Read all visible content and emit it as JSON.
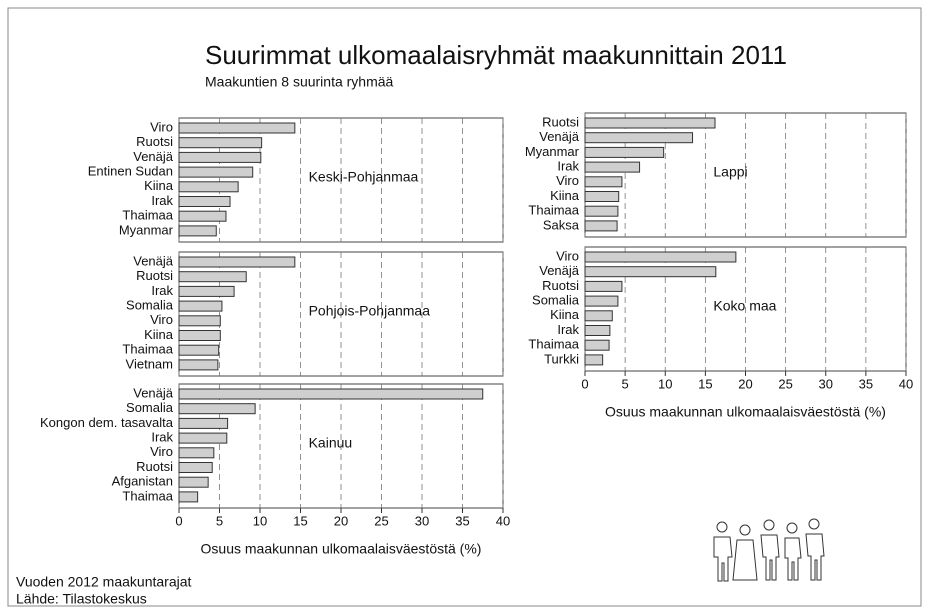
{
  "title": "Suurimmat ulkomaalaisryhmät maakunnittain 2011",
  "subtitle": "Maakuntien 8 suurinta ryhmää",
  "notes": [
    "Vuoden 2012 maakuntarajat",
    "Lähde: Tilastokeskus"
  ],
  "chart_data": [
    {
      "type": "bar",
      "orientation": "horizontal",
      "annotation": "Keski-Pohjanmaa",
      "color": "#cfcfcf",
      "grid": true,
      "categories": [
        "Viro",
        "Ruotsi",
        "Venäjä",
        "Entinen Sudan",
        "Kiina",
        "Irak",
        "Thaimaa",
        "Myanmar"
      ],
      "values": [
        14.3,
        10.2,
        10.1,
        9.1,
        7.3,
        6.3,
        5.8,
        4.6
      ],
      "xlim": [
        0,
        40
      ],
      "xticks": [
        0,
        5,
        10,
        15,
        20,
        25,
        30,
        35,
        40
      ]
    },
    {
      "type": "bar",
      "orientation": "horizontal",
      "annotation": "Pohjois-Pohjanmaa",
      "color": "#cfcfcf",
      "grid": true,
      "categories": [
        "Venäjä",
        "Ruotsi",
        "Irak",
        "Somalia",
        "Viro",
        "Kiina",
        "Thaimaa",
        "Vietnam"
      ],
      "values": [
        14.3,
        8.3,
        6.8,
        5.3,
        5.1,
        5.1,
        4.9,
        4.8
      ],
      "xlim": [
        0,
        40
      ],
      "xticks": [
        0,
        5,
        10,
        15,
        20,
        25,
        30,
        35,
        40
      ]
    },
    {
      "type": "bar",
      "orientation": "horizontal",
      "annotation": "Kainuu",
      "color": "#cfcfcf",
      "grid": true,
      "categories": [
        "Venäjä",
        "Somalia",
        "Kongon dem. tasavalta",
        "Irak",
        "Viro",
        "Ruotsi",
        "Afganistan",
        "Thaimaa"
      ],
      "values": [
        37.5,
        9.4,
        6.0,
        5.9,
        4.3,
        4.1,
        3.6,
        2.3
      ],
      "xlim": [
        0,
        40
      ],
      "xticks": [
        0,
        5,
        10,
        15,
        20,
        25,
        30,
        35,
        40
      ],
      "xlabel": "Osuus maakunnan ulkomaalaisväestöstä (%)"
    },
    {
      "type": "bar",
      "orientation": "horizontal",
      "annotation": "Lappi",
      "color": "#cfcfcf",
      "grid": true,
      "categories": [
        "Ruotsi",
        "Venäjä",
        "Myanmar",
        "Irak",
        "Viro",
        "Kiina",
        "Thaimaa",
        "Saksa"
      ],
      "values": [
        16.2,
        13.4,
        9.8,
        6.8,
        4.6,
        4.2,
        4.1,
        4.0
      ],
      "xlim": [
        0,
        40
      ],
      "xticks": [
        0,
        5,
        10,
        15,
        20,
        25,
        30,
        35,
        40
      ]
    },
    {
      "type": "bar",
      "orientation": "horizontal",
      "annotation": "Koko maa",
      "color": "#cfcfcf",
      "grid": true,
      "categories": [
        "Viro",
        "Venäjä",
        "Ruotsi",
        "Somalia",
        "Kiina",
        "Irak",
        "Thaimaa",
        "Turkki"
      ],
      "values": [
        18.8,
        16.3,
        4.6,
        4.1,
        3.4,
        3.1,
        3.0,
        2.2
      ],
      "xlim": [
        0,
        40
      ],
      "xticks": [
        0,
        5,
        10,
        15,
        20,
        25,
        30,
        35,
        40
      ],
      "xlabel": "Osuus maakunnan ulkomaalaisväestöstä (%)"
    }
  ]
}
